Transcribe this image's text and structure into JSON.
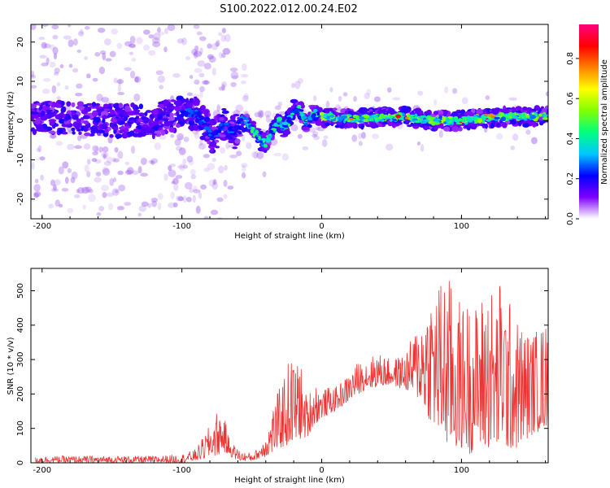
{
  "title": "S100.2022.012.00.24.E02",
  "chart_data": [
    {
      "type": "heatmap",
      "xlabel": "Height of straight line (km)",
      "ylabel": "Frequency (Hz)",
      "xlim": [
        -208,
        162
      ],
      "ylim": [
        -25,
        24.5
      ],
      "xticks": [
        -200,
        -100,
        0,
        100
      ],
      "yticks": [
        -20,
        -10,
        0,
        10,
        20
      ],
      "colorbar": {
        "label": "Normalized spectral amplitude",
        "range": [
          0,
          0.97
        ],
        "ticks": [
          0.0,
          0.2,
          0.4,
          0.6,
          0.8
        ],
        "colormap": [
          "#ffffff",
          "#7f00ff",
          "#0000ff",
          "#00c8ff",
          "#00ff80",
          "#80ff00",
          "#ffff00",
          "#ff8000",
          "#ff0000",
          "#ff0080"
        ]
      },
      "ridge": [
        {
          "x": -205,
          "y": 1
        },
        {
          "x": -180,
          "y": 0.5
        },
        {
          "x": -150,
          "y": 0
        },
        {
          "x": -120,
          "y": 0
        },
        {
          "x": -100,
          "y": 2
        },
        {
          "x": -90,
          "y": 2
        },
        {
          "x": -82,
          "y": -2
        },
        {
          "x": -78,
          "y": -4
        },
        {
          "x": -70,
          "y": -1
        },
        {
          "x": -62,
          "y": -3
        },
        {
          "x": -57,
          "y": 1
        },
        {
          "x": -50,
          "y": -2
        },
        {
          "x": -44,
          "y": -5
        },
        {
          "x": -40,
          "y": -6
        },
        {
          "x": -36,
          "y": -3
        },
        {
          "x": -30,
          "y": 0
        },
        {
          "x": -28,
          "y": -2
        },
        {
          "x": -25,
          "y": -1
        },
        {
          "x": -20,
          "y": 3
        },
        {
          "x": -16,
          "y": 3
        },
        {
          "x": -10,
          "y": -1
        },
        {
          "x": -6,
          "y": 2
        },
        {
          "x": 0,
          "y": 1
        },
        {
          "x": 20,
          "y": 0.5
        },
        {
          "x": 60,
          "y": 1
        },
        {
          "x": 80,
          "y": 0
        },
        {
          "x": 100,
          "y": 0
        },
        {
          "x": 130,
          "y": 1
        },
        {
          "x": 160,
          "y": 1
        }
      ]
    },
    {
      "type": "line",
      "xlabel": "Height of straight line (km)",
      "ylabel": "SNR (10 * v/v)",
      "xlim": [
        -208,
        162
      ],
      "ylim": [
        0,
        565
      ],
      "xticks": [
        -200,
        -100,
        0,
        100
      ],
      "yticks": [
        0,
        100,
        200,
        300,
        400,
        500
      ],
      "color": "#ee3333",
      "series": [
        {
          "x": [
            -205,
            -180,
            -150,
            -120,
            -100,
            -90,
            -85,
            -80,
            -75,
            -70,
            -66,
            -62,
            -58,
            -54,
            -50,
            -46,
            -42,
            -38,
            -34,
            -30,
            -26,
            -22,
            -18,
            -16,
            -13,
            -10,
            -5,
            0,
            5,
            10,
            15,
            20,
            25,
            30,
            40,
            50,
            60,
            70,
            75,
            80,
            85,
            88,
            90,
            95,
            100,
            105,
            110,
            115,
            120,
            125,
            128,
            132,
            140,
            150,
            160
          ],
          "envelope_lo": [
            0,
            0,
            0,
            0,
            0,
            5,
            10,
            15,
            20,
            30,
            20,
            10,
            5,
            5,
            5,
            10,
            15,
            20,
            30,
            40,
            45,
            50,
            60,
            65,
            70,
            75,
            110,
            130,
            140,
            150,
            165,
            180,
            195,
            210,
            220,
            225,
            210,
            180,
            140,
            100,
            60,
            40,
            40,
            30,
            40,
            20,
            40,
            30,
            40,
            20,
            60,
            30,
            40,
            80,
            100
          ],
          "envelope_hi": [
            20,
            20,
            20,
            20,
            25,
            40,
            75,
            110,
            150,
            140,
            70,
            50,
            35,
            30,
            30,
            40,
            70,
            110,
            180,
            220,
            270,
            320,
            280,
            340,
            210,
            200,
            240,
            210,
            220,
            220,
            240,
            260,
            290,
            300,
            320,
            300,
            320,
            420,
            480,
            520,
            540,
            560,
            555,
            500,
            470,
            480,
            460,
            500,
            540,
            480,
            555,
            500,
            420,
            380,
            410
          ]
        }
      ]
    }
  ]
}
